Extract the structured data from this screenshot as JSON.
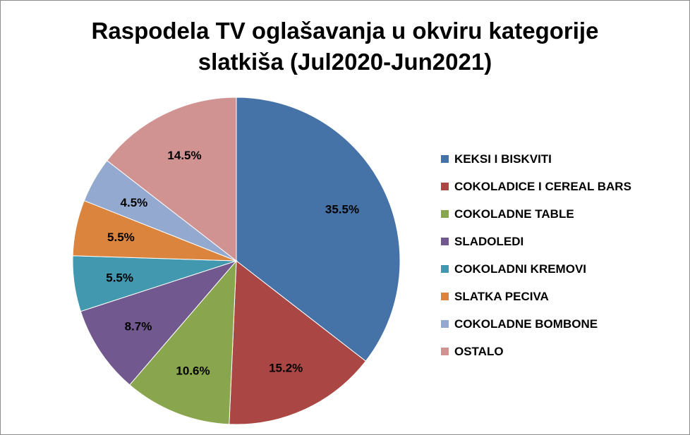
{
  "chart_data": {
    "type": "pie",
    "title_lines": [
      "Raspodela TV oglašavanja u okviru kategorije",
      "slatkiša (Jul2020-Jun2021)"
    ],
    "categories": [
      "KEKSI I BISKVITI",
      "COKOLADICE I CEREAL BARS",
      "COKOLADNE TABLE",
      "SLADOLEDI",
      "COKOLADNI KREMOVI",
      "SLATKA PECIVA",
      "COKOLADNE BOMBONE",
      "OSTALO"
    ],
    "values": [
      35.5,
      15.2,
      10.6,
      8.7,
      5.5,
      5.5,
      4.5,
      14.5
    ],
    "value_labels": [
      "35.5%",
      "15.2%",
      "10.6%",
      "8.7%",
      "5.5%",
      "5.5%",
      "4.5%",
      "14.5%"
    ],
    "colors": [
      "#4572A7",
      "#AA4643",
      "#89A54E",
      "#71588F",
      "#4198AF",
      "#DB843D",
      "#93A9CF",
      "#D19392"
    ],
    "start_angle": "12 o'clock",
    "direction": "clockwise",
    "legend_position": "right"
  }
}
